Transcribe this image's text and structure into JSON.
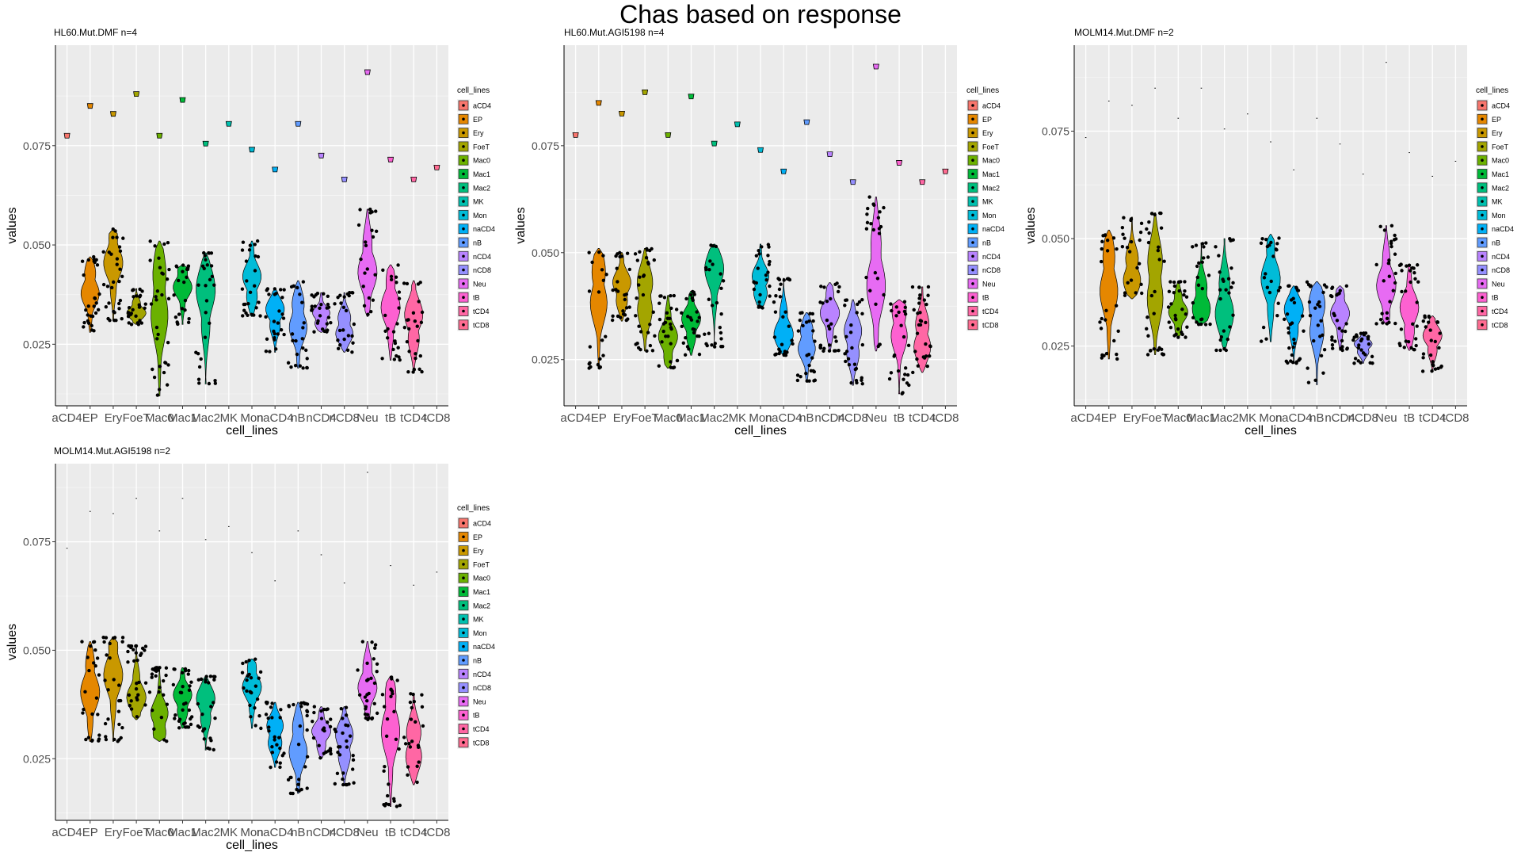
{
  "title": "Chas based on response",
  "chart_data": {
    "type": "violin",
    "categories": [
      "aCD4",
      "EP",
      "Ery",
      "FoeT",
      "Mac0",
      "Mac1",
      "Mac2",
      "MK",
      "Mon",
      "naCD4",
      "nB",
      "nCD4",
      "nCD8",
      "Neu",
      "tB",
      "tCD4",
      "tCD8"
    ],
    "legend_title": "cell_lines",
    "legend_position": "right",
    "colors": {
      "aCD4": "#F8766D",
      "EP": "#E58700",
      "Ery": "#C99800",
      "FoeT": "#A3A500",
      "Mac0": "#6BB100",
      "Mac1": "#00BA38",
      "Mac2": "#00BF7D",
      "MK": "#00C0AF",
      "Mon": "#00BCD8",
      "naCD4": "#00B0F6",
      "nB": "#619CFF",
      "nCD4": "#B983FF",
      "nCD8": "#9590FF",
      "Neu": "#E76BF3",
      "tB": "#FD61D1",
      "tCD4": "#FF67A4",
      "tCD8": "#FF6C91"
    },
    "panels": [
      {
        "title": "HL60.Mut.DMF n=4",
        "xlabel": "cell_lines",
        "ylabel": "values",
        "ylim": [
          0.0095,
          0.1003
        ],
        "yticks": [
          0.025,
          0.05,
          0.075
        ],
        "ytick_labels": [
          "0.025",
          "0.050",
          "0.075"
        ],
        "grid": true,
        "summary_marks": [
          0.0775,
          0.085,
          0.083,
          0.088,
          0.0775,
          0.0865,
          0.0755,
          0.0805,
          0.074,
          0.069,
          0.0805,
          0.0725,
          0.0665,
          0.0935,
          0.0715,
          0.0665,
          0.0695
        ],
        "groups": [
          null,
          {
            "min": 0.028,
            "max": 0.047,
            "median": 0.039
          },
          {
            "min": 0.031,
            "max": 0.054,
            "median": 0.046
          },
          {
            "min": 0.03,
            "max": 0.039,
            "median": 0.033
          },
          {
            "min": 0.012,
            "max": 0.051,
            "median": 0.036
          },
          {
            "min": 0.03,
            "max": 0.045,
            "median": 0.04
          },
          {
            "min": 0.015,
            "max": 0.048,
            "median": 0.038
          },
          null,
          {
            "min": 0.032,
            "max": 0.051,
            "median": 0.041
          },
          {
            "min": 0.023,
            "max": 0.039,
            "median": 0.033
          },
          {
            "min": 0.019,
            "max": 0.041,
            "median": 0.031
          },
          {
            "min": 0.028,
            "max": 0.038,
            "median": 0.032
          },
          {
            "min": 0.023,
            "max": 0.038,
            "median": 0.029
          },
          {
            "min": 0.032,
            "max": 0.059,
            "median": 0.044
          },
          {
            "min": 0.021,
            "max": 0.045,
            "median": 0.035
          },
          {
            "min": 0.018,
            "max": 0.041,
            "median": 0.031
          },
          null
        ]
      },
      {
        "title": "HL60.Mut.AGI5198 n=4",
        "xlabel": "cell_lines",
        "ylabel": "values",
        "ylim": [
          0.0142,
          0.0985
        ],
        "yticks": [
          0.025,
          0.05,
          0.075
        ],
        "ytick_labels": [
          "0.025",
          "0.050",
          "0.075"
        ],
        "grid": true,
        "summary_marks": [
          0.0775,
          0.085,
          0.0825,
          0.0875,
          0.0775,
          0.0865,
          0.0755,
          0.08,
          0.074,
          0.069,
          0.0805,
          0.073,
          0.0665,
          0.0935,
          0.071,
          0.0665,
          0.069
        ],
        "groups": [
          null,
          {
            "min": 0.023,
            "max": 0.051,
            "median": 0.041
          },
          {
            "min": 0.034,
            "max": 0.05,
            "median": 0.042
          },
          {
            "min": 0.027,
            "max": 0.051,
            "median": 0.04
          },
          {
            "min": 0.023,
            "max": 0.04,
            "median": 0.03
          },
          {
            "min": 0.026,
            "max": 0.041,
            "median": 0.034
          },
          {
            "min": 0.028,
            "max": 0.052,
            "median": 0.047
          },
          null,
          {
            "min": 0.037,
            "max": 0.052,
            "median": 0.043
          },
          {
            "min": 0.026,
            "max": 0.044,
            "median": 0.031
          },
          {
            "min": 0.02,
            "max": 0.036,
            "median": 0.029
          },
          {
            "min": 0.027,
            "max": 0.043,
            "median": 0.036
          },
          {
            "min": 0.019,
            "max": 0.039,
            "median": 0.03
          },
          {
            "min": 0.027,
            "max": 0.063,
            "median": 0.044
          },
          {
            "min": 0.017,
            "max": 0.039,
            "median": 0.033
          },
          {
            "min": 0.022,
            "max": 0.042,
            "median": 0.03
          },
          null
        ]
      },
      {
        "title": "MOLM14.Mut.DMF n=2",
        "xlabel": "cell_lines",
        "ylabel": "values",
        "ylim": [
          0.0111,
          0.095
        ],
        "yticks": [
          0.025,
          0.05,
          0.075
        ],
        "ytick_labels": [
          "0.025",
          "0.050",
          "0.075"
        ],
        "grid": true,
        "summary_marks": [
          0.0735,
          0.082,
          0.081,
          0.085,
          0.078,
          0.085,
          0.0755,
          0.079,
          0.0725,
          0.066,
          0.078,
          0.072,
          0.065,
          0.091,
          0.07,
          0.0645,
          0.068
        ],
        "groups": [
          null,
          {
            "min": 0.022,
            "max": 0.052,
            "median": 0.04
          },
          {
            "min": 0.036,
            "max": 0.055,
            "median": 0.042
          },
          {
            "min": 0.023,
            "max": 0.056,
            "median": 0.04
          },
          {
            "min": 0.027,
            "max": 0.04,
            "median": 0.033
          },
          {
            "min": 0.03,
            "max": 0.049,
            "median": 0.035
          },
          {
            "min": 0.024,
            "max": 0.05,
            "median": 0.034
          },
          null,
          {
            "min": 0.026,
            "max": 0.051,
            "median": 0.041
          },
          {
            "min": 0.021,
            "max": 0.039,
            "median": 0.033
          },
          {
            "min": 0.016,
            "max": 0.04,
            "median": 0.032
          },
          {
            "min": 0.024,
            "max": 0.039,
            "median": 0.033
          },
          {
            "min": 0.021,
            "max": 0.028,
            "median": 0.025
          },
          {
            "min": 0.03,
            "max": 0.053,
            "median": 0.039
          },
          {
            "min": 0.024,
            "max": 0.044,
            "median": 0.033
          },
          {
            "min": 0.019,
            "max": 0.032,
            "median": 0.027
          },
          null
        ]
      },
      {
        "title": "MOLM14.Mut.AGI5198 n=2",
        "xlabel": "cell_lines",
        "ylabel": "values",
        "ylim": [
          0.0108,
          0.093
        ],
        "yticks": [
          0.025,
          0.05,
          0.075
        ],
        "ytick_labels": [
          "0.025",
          "0.050",
          "0.075"
        ],
        "grid": true,
        "summary_marks": [
          0.0735,
          0.082,
          0.0815,
          0.085,
          0.0775,
          0.085,
          0.0755,
          0.0785,
          0.0725,
          0.066,
          0.0775,
          0.072,
          0.0655,
          0.091,
          0.0695,
          0.065,
          0.068
        ],
        "groups": [
          null,
          {
            "min": 0.029,
            "max": 0.052,
            "median": 0.041
          },
          {
            "min": 0.029,
            "max": 0.053,
            "median": 0.045
          },
          {
            "min": 0.034,
            "max": 0.051,
            "median": 0.039
          },
          {
            "min": 0.029,
            "max": 0.046,
            "median": 0.034
          },
          {
            "min": 0.032,
            "max": 0.046,
            "median": 0.039
          },
          {
            "min": 0.027,
            "max": 0.044,
            "median": 0.038
          },
          null,
          {
            "min": 0.032,
            "max": 0.048,
            "median": 0.042
          },
          {
            "min": 0.023,
            "max": 0.038,
            "median": 0.031
          },
          {
            "min": 0.017,
            "max": 0.038,
            "median": 0.028
          },
          {
            "min": 0.025,
            "max": 0.037,
            "median": 0.031
          },
          {
            "min": 0.019,
            "max": 0.037,
            "median": 0.029
          },
          {
            "min": 0.034,
            "max": 0.052,
            "median": 0.042
          },
          {
            "min": 0.014,
            "max": 0.044,
            "median": 0.033
          },
          {
            "min": 0.019,
            "max": 0.04,
            "median": 0.028
          },
          null
        ]
      }
    ]
  }
}
